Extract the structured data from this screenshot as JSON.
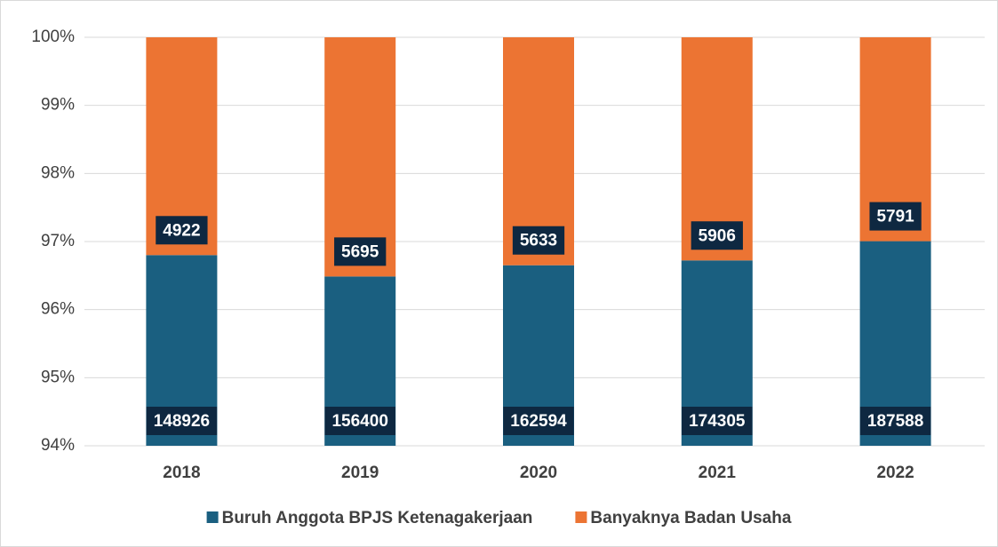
{
  "chart_data": {
    "type": "bar",
    "stacking": "percent",
    "categories": [
      "2018",
      "2019",
      "2020",
      "2021",
      "2022"
    ],
    "series": [
      {
        "name": "Buruh Anggota BPJS Ketenagakerjaan",
        "color": "#1a5f80",
        "values": [
          148926,
          156400,
          162594,
          174305,
          187588
        ]
      },
      {
        "name": "Banyaknya Badan Usaha",
        "color": "#ec7433",
        "values": [
          4922,
          5695,
          5633,
          5906,
          5791
        ]
      }
    ],
    "ylim": [
      94,
      100
    ],
    "yticks": [
      {
        "value": 94,
        "label": "94%"
      },
      {
        "value": 95,
        "label": "95%"
      },
      {
        "value": 96,
        "label": "96%"
      },
      {
        "value": 97,
        "label": "97%"
      },
      {
        "value": 98,
        "label": "98%"
      },
      {
        "value": 99,
        "label": "99%"
      },
      {
        "value": 100,
        "label": "100%"
      }
    ],
    "grid": true,
    "legend": "bottom"
  }
}
